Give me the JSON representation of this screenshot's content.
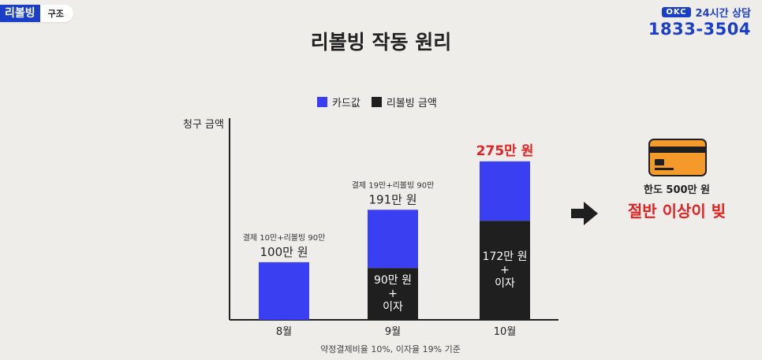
{
  "header": {
    "tag_main": "리볼빙",
    "tag_sub": "구조",
    "brand_logo": "OKC",
    "brand_hours": "24시간 상담",
    "brand_phone": "1833-3504"
  },
  "colors": {
    "card": "#3a40f2",
    "revolving": "#1f1f1f",
    "highlight": "#e32121",
    "brand": "#1a3ec8"
  },
  "chart_data": {
    "type": "bar",
    "stacked": true,
    "title": "리볼빙 작동 원리",
    "ylabel": "청구 금액",
    "xlabel": "",
    "categories": [
      "8월",
      "9월",
      "10월"
    ],
    "series": [
      {
        "name": "리볼빙 금액",
        "values": [
          0,
          90,
          172
        ]
      },
      {
        "name": "카드값",
        "values": [
          100,
          101,
          103
        ]
      }
    ],
    "ylim": [
      0,
      350
    ],
    "grid": false,
    "legend": "top",
    "totals": [
      100,
      191,
      275
    ],
    "total_labels": [
      "100만 원",
      "191만 원",
      "275만 원"
    ],
    "notes": [
      "결제 10만+리볼빙 90만",
      "결제 19만+리볼빙 90만",
      ""
    ],
    "segment_labels": [
      [],
      [
        "90만 원",
        "+",
        "이자"
      ],
      [
        "172만 원",
        "+",
        "이자"
      ]
    ],
    "footnote": "약정결제비율 10%, 이자율 19% 기준"
  },
  "side": {
    "card_icon": "credit-card-icon",
    "limit_text": "한도 500만 원",
    "half_text": "절반 이상이 빚"
  }
}
